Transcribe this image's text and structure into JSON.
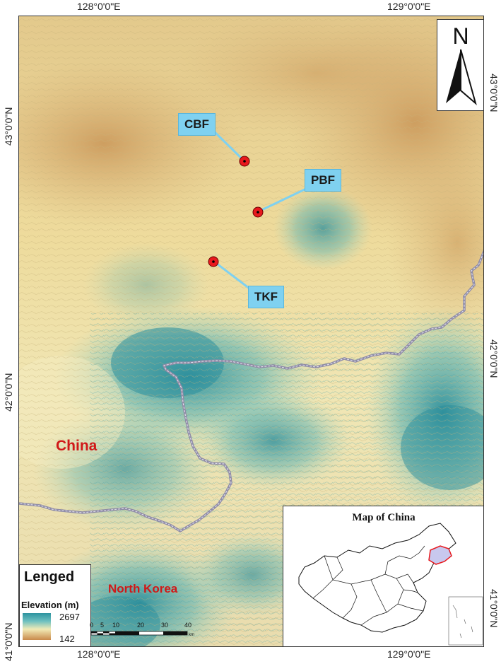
{
  "graticule": {
    "lon_left": "128°0'0\"E",
    "lon_right": "129°0'0\"E",
    "lat_upper": "43°0'0\"N",
    "lat_lower": "42°0'0\"N",
    "lat_bottom": "41°0'0\"N"
  },
  "sites": [
    {
      "name": "CBF"
    },
    {
      "name": "PBF"
    },
    {
      "name": "TKF"
    }
  ],
  "countries": {
    "china": "China",
    "north_korea": "North Korea"
  },
  "north_arrow": {
    "label": "N"
  },
  "inset": {
    "title": "Map of China"
  },
  "legend": {
    "title": "Lenged",
    "subtitle": "Elevation (m)",
    "max": "2697",
    "min": "142",
    "ramp_colors": [
      "#2d93a0",
      "#6dc0c0",
      "#f1eab6",
      "#c98a4b"
    ]
  },
  "scale_bar": {
    "ticks": [
      "0",
      "5",
      "10",
      "20",
      "30",
      "40"
    ],
    "unit": "km"
  },
  "colors": {
    "site_marker": "#e8191d",
    "site_label_bg": "#7fd1f0",
    "border_line": "#8f8ca6",
    "country_label": "#d01818",
    "highlight_region": "#c8c8ee"
  }
}
